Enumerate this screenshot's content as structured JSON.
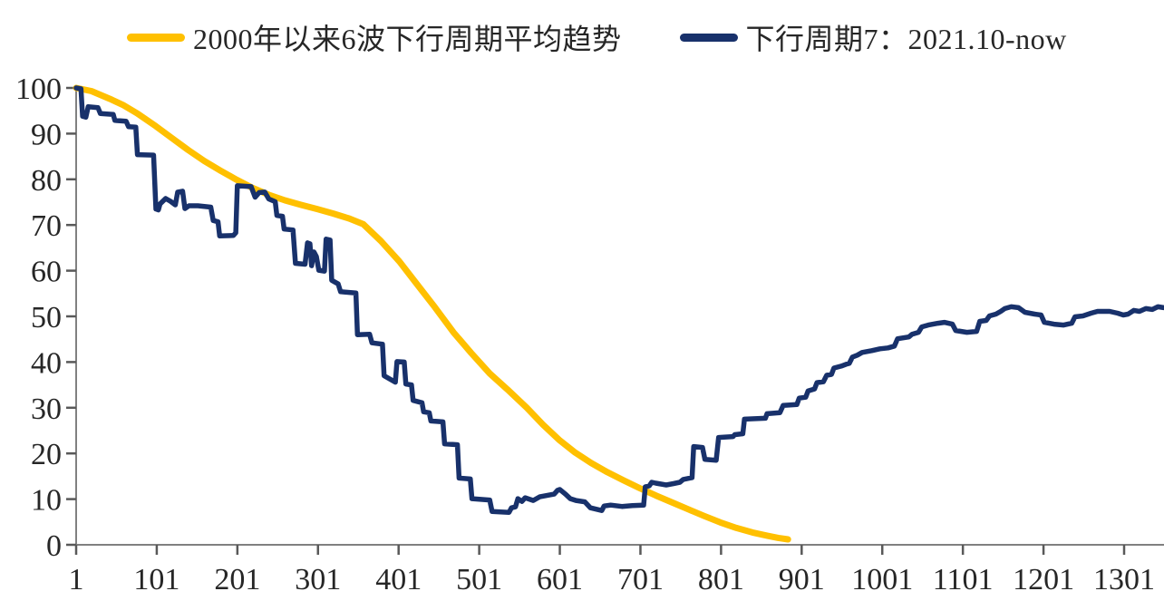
{
  "figure": {
    "background_color": "#ffffff",
    "axis_color": "#808080",
    "tick_color": "#595959",
    "tick_label_color": "#262626"
  },
  "legend": {
    "position": "top",
    "items": [
      {
        "label": "2000年以来6波下行周期平均趋势",
        "color": "#FFC000"
      },
      {
        "label": "下行周期7：2021.10-now",
        "color": "#18316B"
      }
    ]
  },
  "chart_data": {
    "type": "line",
    "title": "",
    "xlabel": "",
    "ylabel": "",
    "grid": false,
    "legend_position": "top",
    "x_axis": {
      "min": 1,
      "max": 1351,
      "ticks": [
        1,
        101,
        201,
        301,
        401,
        501,
        601,
        701,
        801,
        901,
        1001,
        1101,
        1201,
        1301
      ]
    },
    "y_axis": {
      "min": 0,
      "max": 100,
      "ticks": [
        0,
        10,
        20,
        30,
        40,
        50,
        60,
        70,
        80,
        90,
        100
      ]
    },
    "series": [
      {
        "name": "2000年以来6波下行周期平均趋势",
        "color": "#FFC000",
        "stroke_width": 7,
        "points": [
          [
            1,
            100
          ],
          [
            20,
            99.3
          ],
          [
            43,
            97.6
          ],
          [
            60,
            96.2
          ],
          [
            77,
            94.4
          ],
          [
            100,
            91.6
          ],
          [
            120,
            89
          ],
          [
            140,
            86.4
          ],
          [
            160,
            84
          ],
          [
            180,
            81.9
          ],
          [
            200,
            79.9
          ],
          [
            220,
            78.1
          ],
          [
            240,
            76.6
          ],
          [
            260,
            75.4
          ],
          [
            280,
            74.4
          ],
          [
            300,
            73.5
          ],
          [
            320,
            72.5
          ],
          [
            340,
            71.4
          ],
          [
            357,
            70.2
          ],
          [
            379,
            66.5
          ],
          [
            402,
            62
          ],
          [
            424,
            57
          ],
          [
            446,
            52
          ],
          [
            469,
            46.5
          ],
          [
            491,
            42
          ],
          [
            514,
            37.5
          ],
          [
            536,
            34
          ],
          [
            560,
            30
          ],
          [
            580,
            26.3
          ],
          [
            600,
            23
          ],
          [
            620,
            20.2
          ],
          [
            640,
            17.9
          ],
          [
            660,
            15.9
          ],
          [
            680,
            14.1
          ],
          [
            700,
            12.4
          ],
          [
            720,
            10.8
          ],
          [
            740,
            9.3
          ],
          [
            760,
            7.8
          ],
          [
            780,
            6.3
          ],
          [
            800,
            4.9
          ],
          [
            820,
            3.7
          ],
          [
            840,
            2.7
          ],
          [
            858,
            2
          ],
          [
            872,
            1.5
          ],
          [
            884,
            1.2
          ]
        ]
      },
      {
        "name": "下行周期7：2021.10-now",
        "color": "#18316B",
        "stroke_width": 5.5,
        "points": [
          [
            1,
            100
          ],
          [
            7,
            99.8
          ],
          [
            9,
            93.8
          ],
          [
            13,
            93.6
          ],
          [
            16,
            95.9
          ],
          [
            28,
            95.7
          ],
          [
            31,
            94.4
          ],
          [
            47,
            94.2
          ],
          [
            49,
            92.9
          ],
          [
            63,
            92.7
          ],
          [
            66,
            91.5
          ],
          [
            75,
            91.4
          ],
          [
            77,
            85.4
          ],
          [
            97,
            85.3
          ],
          [
            100,
            73.5
          ],
          [
            103,
            73.3
          ],
          [
            105,
            74.6
          ],
          [
            112,
            75.8
          ],
          [
            118,
            75.2
          ],
          [
            124,
            74.4
          ],
          [
            127,
            77.2
          ],
          [
            133,
            77.4
          ],
          [
            136,
            73.6
          ],
          [
            141,
            74.2
          ],
          [
            152,
            74.2
          ],
          [
            168,
            73.9
          ],
          [
            171,
            71
          ],
          [
            177,
            70.7
          ],
          [
            179,
            67.6
          ],
          [
            196,
            67.7
          ],
          [
            199,
            68.3
          ],
          [
            201,
            78.6
          ],
          [
            218,
            78.4
          ],
          [
            223,
            76.1
          ],
          [
            228,
            77.1
          ],
          [
            235,
            77.2
          ],
          [
            240,
            75.7
          ],
          [
            248,
            75.1
          ],
          [
            250,
            72.1
          ],
          [
            257,
            71.9
          ],
          [
            259,
            69.1
          ],
          [
            270,
            68.9
          ],
          [
            273,
            61.6
          ],
          [
            285,
            61.4
          ],
          [
            288,
            66.1
          ],
          [
            291,
            65.9
          ],
          [
            293,
            61.1
          ],
          [
            296,
            64.1
          ],
          [
            299,
            63.1
          ],
          [
            302,
            60.1
          ],
          [
            309,
            59.9
          ],
          [
            311,
            66.9
          ],
          [
            316,
            66.7
          ],
          [
            318,
            57.9
          ],
          [
            326,
            57.1
          ],
          [
            329,
            55.4
          ],
          [
            348,
            55.1
          ],
          [
            350,
            46
          ],
          [
            365,
            46.1
          ],
          [
            368,
            44.2
          ],
          [
            381,
            43.9
          ],
          [
            383,
            37
          ],
          [
            397,
            35.6
          ],
          [
            399,
            40.1
          ],
          [
            408,
            40
          ],
          [
            410,
            35.2
          ],
          [
            417,
            35
          ],
          [
            419,
            31.6
          ],
          [
            430,
            31.1
          ],
          [
            432,
            29.1
          ],
          [
            439,
            28.9
          ],
          [
            441,
            27.1
          ],
          [
            456,
            26.9
          ],
          [
            458,
            22.1
          ],
          [
            474,
            21.9
          ],
          [
            476,
            14.6
          ],
          [
            490,
            14.4
          ],
          [
            492,
            10.1
          ],
          [
            514,
            9.8
          ],
          [
            517,
            7.3
          ],
          [
            538,
            7.1
          ],
          [
            541,
            8.1
          ],
          [
            546,
            8.3
          ],
          [
            549,
            10.1
          ],
          [
            554,
            9.5
          ],
          [
            558,
            10.3
          ],
          [
            568,
            9.7
          ],
          [
            576,
            10.5
          ],
          [
            582,
            10.7
          ],
          [
            594,
            11.1
          ],
          [
            598,
            11.9
          ],
          [
            601,
            12.1
          ],
          [
            608,
            11.1
          ],
          [
            614,
            10.1
          ],
          [
            621,
            9.7
          ],
          [
            632,
            9.4
          ],
          [
            639,
            8.1
          ],
          [
            653,
            7.5
          ],
          [
            656,
            8.5
          ],
          [
            664,
            8.7
          ],
          [
            678,
            8.4
          ],
          [
            691,
            8.6
          ],
          [
            705,
            8.7
          ],
          [
            707,
            12.7
          ],
          [
            712,
            12.9
          ],
          [
            715,
            13.7
          ],
          [
            720,
            13.5
          ],
          [
            733,
            13.1
          ],
          [
            742,
            13.4
          ],
          [
            750,
            13.7
          ],
          [
            754,
            14.3
          ],
          [
            765,
            14.7
          ],
          [
            767,
            21.5
          ],
          [
            778,
            21.3
          ],
          [
            781,
            18.7
          ],
          [
            795,
            18.5
          ],
          [
            798,
            23.5
          ],
          [
            816,
            23.7
          ],
          [
            818,
            24.1
          ],
          [
            828,
            24.3
          ],
          [
            830,
            27.5
          ],
          [
            856,
            27.7
          ],
          [
            858,
            28.7
          ],
          [
            874,
            28.9
          ],
          [
            878,
            30.5
          ],
          [
            895,
            30.7
          ],
          [
            898,
            32.1
          ],
          [
            906,
            32.3
          ],
          [
            909,
            33.7
          ],
          [
            917,
            34.1
          ],
          [
            920,
            35.5
          ],
          [
            928,
            35.7
          ],
          [
            932,
            37.1
          ],
          [
            938,
            37.3
          ],
          [
            941,
            38.7
          ],
          [
            950,
            39.1
          ],
          [
            956,
            39.5
          ],
          [
            960,
            39.7
          ],
          [
            964,
            41.1
          ],
          [
            970,
            41.5
          ],
          [
            976,
            42.1
          ],
          [
            988,
            42.5
          ],
          [
            998,
            42.9
          ],
          [
            1008,
            43.1
          ],
          [
            1016,
            43.5
          ],
          [
            1020,
            45.1
          ],
          [
            1034,
            45.5
          ],
          [
            1038,
            46.1
          ],
          [
            1046,
            46.5
          ],
          [
            1050,
            47.7
          ],
          [
            1058,
            48.1
          ],
          [
            1070,
            48.5
          ],
          [
            1078,
            48.7
          ],
          [
            1088,
            48.3
          ],
          [
            1092,
            46.9
          ],
          [
            1106,
            46.5
          ],
          [
            1118,
            46.7
          ],
          [
            1122,
            48.9
          ],
          [
            1130,
            49.1
          ],
          [
            1134,
            50.1
          ],
          [
            1142,
            50.5
          ],
          [
            1148,
            51.1
          ],
          [
            1153,
            51.7
          ],
          [
            1161,
            52.1
          ],
          [
            1170,
            51.9
          ],
          [
            1178,
            50.9
          ],
          [
            1190,
            50.5
          ],
          [
            1198,
            50.3
          ],
          [
            1202,
            48.7
          ],
          [
            1214,
            48.3
          ],
          [
            1226,
            48.1
          ],
          [
            1236,
            48.5
          ],
          [
            1240,
            49.9
          ],
          [
            1250,
            50.1
          ],
          [
            1260,
            50.7
          ],
          [
            1268,
            51.1
          ],
          [
            1283,
            51.1
          ],
          [
            1293,
            50.7
          ],
          [
            1300,
            50.3
          ],
          [
            1306,
            50.5
          ],
          [
            1313,
            51.3
          ],
          [
            1320,
            51.1
          ],
          [
            1328,
            51.7
          ],
          [
            1336,
            51.5
          ],
          [
            1343,
            52.1
          ],
          [
            1350,
            51.9
          ]
        ]
      }
    ]
  }
}
